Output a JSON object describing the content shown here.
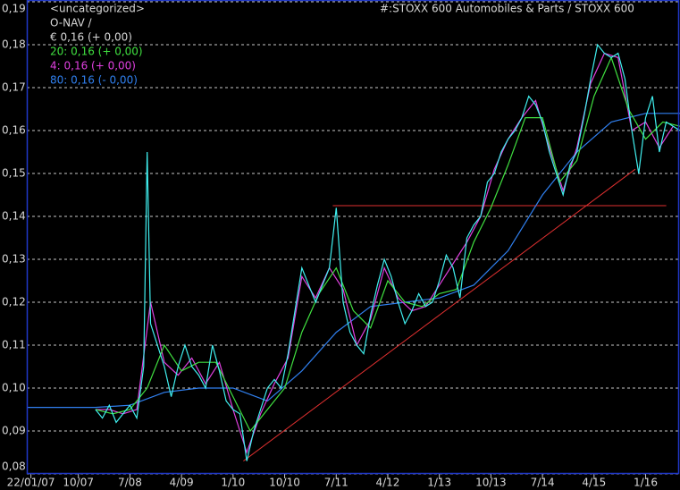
{
  "chart_data": {
    "type": "line",
    "title": "#:STOXX 600 Automobiles & Parts / STOXX 600",
    "group": "<uncategorized>",
    "subtitle": "O-NAV /",
    "xlim": [
      2007.0,
      2016.5
    ],
    "ylim": [
      0.08,
      0.19
    ],
    "xticks": [
      {
        "value": 2007.06,
        "label": "22/01/07"
      },
      {
        "value": 2007.75,
        "label": "10/07"
      },
      {
        "value": 2008.5,
        "label": "7/08"
      },
      {
        "value": 2009.25,
        "label": "4/09"
      },
      {
        "value": 2010.0,
        "label": "1/10"
      },
      {
        "value": 2010.75,
        "label": "10/10"
      },
      {
        "value": 2011.5,
        "label": "7/11"
      },
      {
        "value": 2012.25,
        "label": "4/12"
      },
      {
        "value": 2013.0,
        "label": "1/13"
      },
      {
        "value": 2013.75,
        "label": "10/13"
      },
      {
        "value": 2014.5,
        "label": "7/14"
      },
      {
        "value": 2015.25,
        "label": "4/15"
      },
      {
        "value": 2016.0,
        "label": "1/16"
      }
    ],
    "yticks": [
      {
        "value": 0.08,
        "label": "0,08"
      },
      {
        "value": 0.09,
        "label": "0,09"
      },
      {
        "value": 0.1,
        "label": "0,10"
      },
      {
        "value": 0.11,
        "label": "0,11"
      },
      {
        "value": 0.12,
        "label": "0,12"
      },
      {
        "value": 0.13,
        "label": "0,13"
      },
      {
        "value": 0.14,
        "label": "0,14"
      },
      {
        "value": 0.15,
        "label": "0,15"
      },
      {
        "value": 0.16,
        "label": "0,16"
      },
      {
        "value": 0.17,
        "label": "0,17"
      },
      {
        "value": 0.18,
        "label": "0,18"
      },
      {
        "value": 0.19,
        "label": "0,19"
      }
    ],
    "grid": true,
    "series": [
      {
        "name": "€ 0,16 (+ 0,00)",
        "color": "#40f0f0",
        "legend_color": "#d8d8d8",
        "x": [
          2008.0,
          2008.1,
          2008.2,
          2008.3,
          2008.4,
          2008.5,
          2008.6,
          2008.7,
          2008.75,
          2008.8,
          2008.9,
          2009.0,
          2009.1,
          2009.2,
          2009.3,
          2009.4,
          2009.5,
          2009.6,
          2009.7,
          2009.8,
          2009.9,
          2010.0,
          2010.1,
          2010.2,
          2010.3,
          2010.4,
          2010.5,
          2010.6,
          2010.7,
          2010.8,
          2010.9,
          2011.0,
          2011.1,
          2011.2,
          2011.3,
          2011.4,
          2011.5,
          2011.6,
          2011.7,
          2011.8,
          2011.9,
          2012.0,
          2012.1,
          2012.2,
          2012.3,
          2012.4,
          2012.5,
          2012.6,
          2012.7,
          2012.8,
          2012.9,
          2013.0,
          2013.1,
          2013.2,
          2013.3,
          2013.4,
          2013.5,
          2013.6,
          2013.7,
          2013.8,
          2013.9,
          2014.0,
          2014.1,
          2014.2,
          2014.3,
          2014.4,
          2014.5,
          2014.6,
          2014.7,
          2014.8,
          2014.9,
          2015.0,
          2015.1,
          2015.2,
          2015.3,
          2015.4,
          2015.5,
          2015.6,
          2015.7,
          2015.8,
          2015.9,
          2016.0,
          2016.1,
          2016.2,
          2016.3,
          2016.4,
          2016.5
        ],
        "values": [
          0.095,
          0.093,
          0.096,
          0.092,
          0.094,
          0.096,
          0.093,
          0.105,
          0.155,
          0.115,
          0.11,
          0.105,
          0.098,
          0.105,
          0.11,
          0.105,
          0.103,
          0.1,
          0.11,
          0.104,
          0.097,
          0.095,
          0.094,
          0.083,
          0.09,
          0.095,
          0.1,
          0.102,
          0.1,
          0.108,
          0.118,
          0.128,
          0.124,
          0.12,
          0.124,
          0.128,
          0.142,
          0.12,
          0.113,
          0.11,
          0.108,
          0.117,
          0.124,
          0.13,
          0.126,
          0.12,
          0.115,
          0.118,
          0.122,
          0.119,
          0.12,
          0.125,
          0.131,
          0.128,
          0.121,
          0.135,
          0.138,
          0.14,
          0.148,
          0.15,
          0.155,
          0.158,
          0.16,
          0.163,
          0.168,
          0.166,
          0.162,
          0.155,
          0.15,
          0.145,
          0.152,
          0.155,
          0.163,
          0.172,
          0.18,
          0.178,
          0.177,
          0.178,
          0.172,
          0.16,
          0.15,
          0.163,
          0.168,
          0.155,
          0.162,
          0.161,
          0.16
        ]
      },
      {
        "name": "20: 0,16 (+ 0,00)",
        "color": "#40e040",
        "x": [
          2008.0,
          2008.25,
          2008.5,
          2008.75,
          2009.0,
          2009.25,
          2009.5,
          2009.75,
          2010.0,
          2010.25,
          2010.5,
          2010.75,
          2011.0,
          2011.25,
          2011.5,
          2011.75,
          2012.0,
          2012.25,
          2012.5,
          2012.75,
          2013.0,
          2013.25,
          2013.5,
          2013.75,
          2014.0,
          2014.25,
          2014.5,
          2014.75,
          2015.0,
          2015.25,
          2015.5,
          2015.75,
          2016.0,
          2016.25,
          2016.5
        ],
        "values": [
          0.095,
          0.094,
          0.095,
          0.1,
          0.11,
          0.104,
          0.106,
          0.106,
          0.098,
          0.09,
          0.095,
          0.1,
          0.113,
          0.122,
          0.128,
          0.118,
          0.114,
          0.125,
          0.12,
          0.119,
          0.122,
          0.123,
          0.134,
          0.142,
          0.152,
          0.163,
          0.163,
          0.148,
          0.153,
          0.168,
          0.177,
          0.165,
          0.158,
          0.162,
          0.161
        ]
      },
      {
        "name": "4: 0,16 (+ 0,00)",
        "color": "#e040e0",
        "x": [
          2008.0,
          2008.2,
          2008.4,
          2008.6,
          2008.8,
          2009.0,
          2009.2,
          2009.4,
          2009.6,
          2009.8,
          2010.0,
          2010.2,
          2010.4,
          2010.6,
          2010.8,
          2011.0,
          2011.2,
          2011.4,
          2011.6,
          2011.8,
          2012.0,
          2012.2,
          2012.4,
          2012.6,
          2012.8,
          2013.0,
          2013.2,
          2013.4,
          2013.6,
          2013.8,
          2014.0,
          2014.2,
          2014.4,
          2014.6,
          2014.8,
          2015.0,
          2015.2,
          2015.4,
          2015.6,
          2015.8,
          2016.0,
          2016.2,
          2016.4
        ],
        "values": [
          0.095,
          0.095,
          0.094,
          0.095,
          0.12,
          0.106,
          0.103,
          0.107,
          0.101,
          0.106,
          0.095,
          0.085,
          0.094,
          0.101,
          0.107,
          0.126,
          0.121,
          0.128,
          0.123,
          0.11,
          0.116,
          0.128,
          0.121,
          0.118,
          0.119,
          0.124,
          0.129,
          0.134,
          0.14,
          0.151,
          0.158,
          0.163,
          0.167,
          0.156,
          0.146,
          0.156,
          0.171,
          0.178,
          0.177,
          0.16,
          0.162,
          0.156,
          0.161
        ]
      },
      {
        "name": "80: 0,16 (- 0,00)",
        "color": "#3080f0",
        "x": [
          2007.0,
          2007.5,
          2008.0,
          2008.5,
          2009.0,
          2009.5,
          2010.0,
          2010.5,
          2011.0,
          2011.5,
          2012.0,
          2012.5,
          2013.0,
          2013.5,
          2014.0,
          2014.5,
          2015.0,
          2015.5,
          2016.0,
          2016.5
        ],
        "values": [
          0.0955,
          0.0955,
          0.0955,
          0.096,
          0.099,
          0.1,
          0.1,
          0.097,
          0.104,
          0.113,
          0.119,
          0.12,
          0.121,
          0.124,
          0.132,
          0.145,
          0.155,
          0.162,
          0.164,
          0.164
        ]
      }
    ],
    "trendlines": [
      {
        "x": [
          2010.15,
          2015.85
        ],
        "y": [
          0.083,
          0.151
        ],
        "color": "#e03030"
      },
      {
        "x": [
          2011.45,
          2016.3
        ],
        "y": [
          0.1425,
          0.1425
        ],
        "color": "#e03030"
      }
    ]
  }
}
